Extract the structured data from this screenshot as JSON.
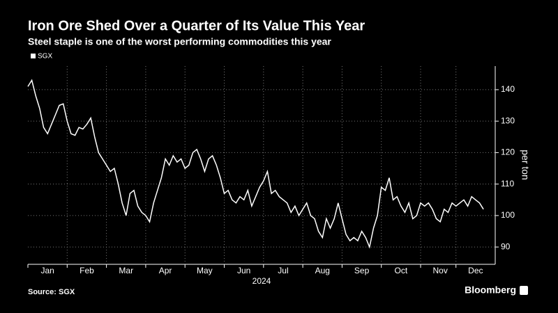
{
  "chart_data": {
    "type": "line",
    "title": "Iron Ore Shed Over a Quarter of Its Value This Year",
    "subtitle": "Steel staple is one of the worst performing commodities this year",
    "xlabel": "2024",
    "ylabel": "per ton",
    "source": "Source: SGX",
    "brand": "Bloomberg",
    "categories": [
      null,
      null,
      null,
      null,
      null,
      "Jan",
      null,
      null,
      null,
      null,
      null,
      null,
      null,
      null,
      null,
      "Feb",
      null,
      null,
      null,
      null,
      null,
      null,
      null,
      null,
      null,
      "Mar",
      null,
      null,
      null,
      null,
      null,
      null,
      null,
      null,
      null,
      "Apr",
      null,
      null,
      null,
      null,
      null,
      null,
      null,
      null,
      null,
      "May",
      null,
      null,
      null,
      null,
      null,
      null,
      null,
      null,
      null,
      "Jun",
      null,
      null,
      null,
      null,
      null,
      null,
      null,
      null,
      null,
      "Jul",
      null,
      null,
      null,
      null,
      null,
      null,
      null,
      null,
      null,
      "Aug",
      null,
      null,
      null,
      null,
      null,
      null,
      null,
      null,
      null,
      "Sep",
      null,
      null,
      null,
      null,
      null,
      null,
      null,
      null,
      null,
      "Oct",
      null,
      null,
      null,
      null,
      null,
      null,
      null,
      null,
      null,
      "Nov",
      null,
      null,
      null,
      null,
      null,
      null,
      null,
      null,
      "Dec",
      null,
      null
    ],
    "series": [
      {
        "name": "SGX",
        "color": "#ffffff",
        "values": [
          141,
          143,
          138,
          134,
          128,
          126,
          129,
          132,
          135,
          135.5,
          130,
          126,
          125.5,
          128,
          127.5,
          129,
          131,
          125,
          120,
          118,
          116,
          114,
          115,
          110,
          104,
          100,
          107,
          108,
          103,
          101,
          100,
          98,
          104,
          108,
          112,
          118,
          116,
          119,
          117,
          118,
          115,
          116,
          120,
          121,
          118,
          114,
          118,
          119,
          116,
          112,
          107,
          108,
          105,
          104,
          106,
          105,
          108,
          103,
          106,
          109,
          111,
          114,
          107,
          108,
          106,
          105,
          104,
          101,
          103,
          100,
          102,
          104,
          100,
          99,
          95,
          93,
          99,
          96,
          99,
          104,
          99,
          94,
          92,
          93,
          92,
          95,
          93,
          90,
          96,
          100,
          109,
          108,
          112,
          105,
          106,
          103,
          101,
          104,
          99,
          100,
          104,
          103,
          104,
          102,
          99,
          98,
          102,
          101,
          104,
          103,
          104,
          105,
          103,
          106,
          105,
          104,
          102
        ]
      }
    ],
    "ylim": [
      84.5,
      147.5
    ],
    "yticks": [
      90,
      100,
      110,
      120,
      130,
      140
    ],
    "grid": true
  }
}
